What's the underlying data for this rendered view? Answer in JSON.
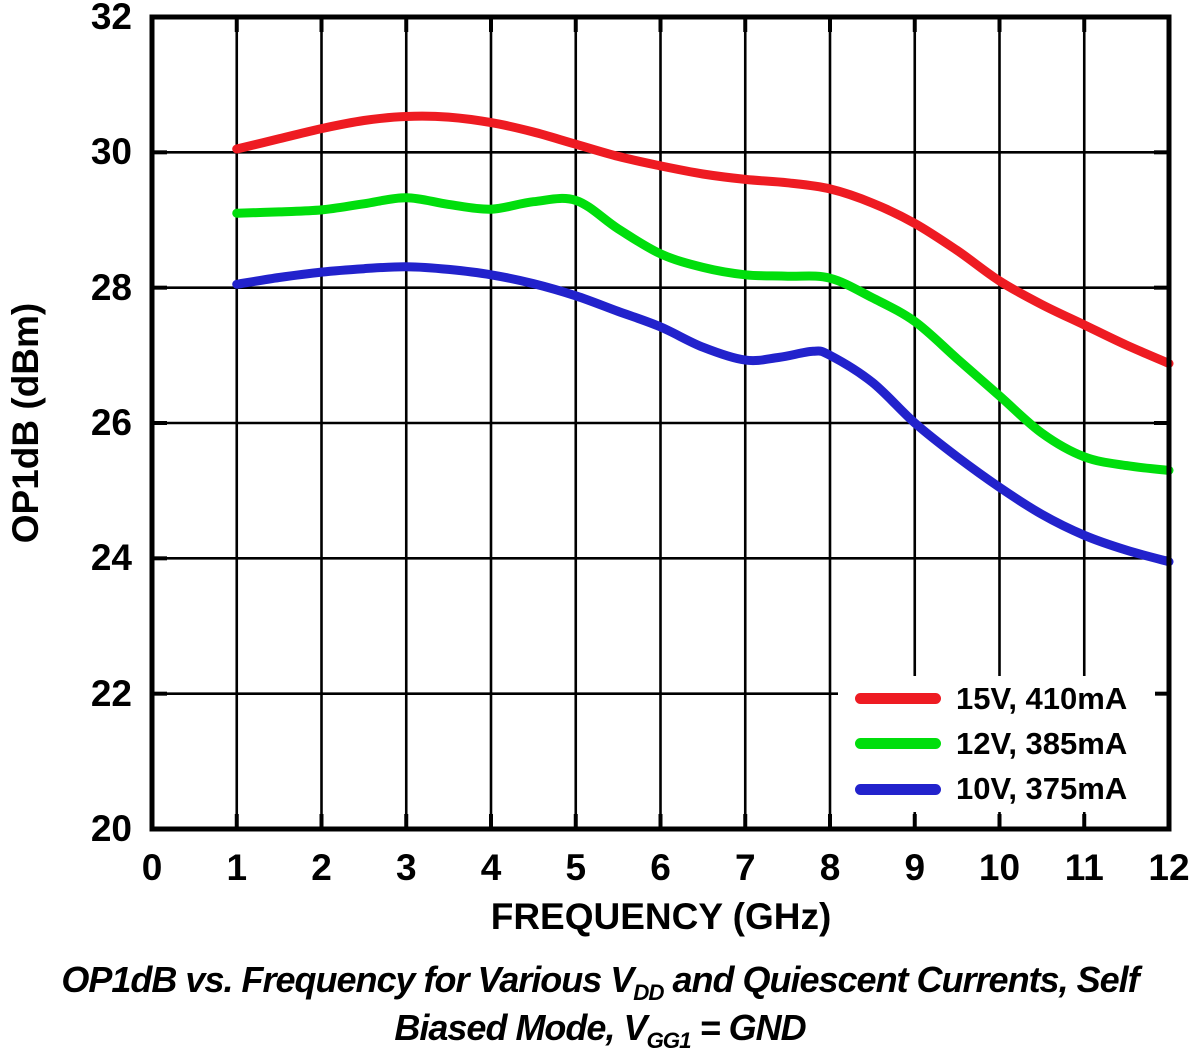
{
  "page": {
    "background": "#ffffff"
  },
  "caption": {
    "line1_pre": "OP1dB vs. Frequency for Various V",
    "line1_sub": "DD",
    "line1_post": " and Quiescent Currents, Self",
    "line2_pre": "Biased Mode, V",
    "line2_sub": "GG1",
    "line2_post": " = GND"
  },
  "chart_data": {
    "type": "line",
    "title": "OP1dB vs. Frequency for Various VDD and Quiescent Currents, Self Biased Mode, VGG1 = GND",
    "xlabel": "FREQUENCY (GHz)",
    "ylabel": "OP1dB (dBm)",
    "xlim": [
      0,
      12
    ],
    "ylim": [
      20,
      32
    ],
    "x_ticks": [
      0,
      1,
      2,
      3,
      4,
      5,
      6,
      7,
      8,
      9,
      10,
      11,
      12
    ],
    "y_ticks": [
      20,
      22,
      24,
      26,
      28,
      30,
      32
    ],
    "grid": true,
    "grid_color": "#000000",
    "legend_position": "lower right",
    "series": [
      {
        "name": "15V, 410mA",
        "color": "#EE1B22",
        "points": [
          [
            1,
            30.05
          ],
          [
            1.5,
            30.2
          ],
          [
            2,
            30.35
          ],
          [
            2.5,
            30.47
          ],
          [
            3,
            30.53
          ],
          [
            3.5,
            30.52
          ],
          [
            4,
            30.44
          ],
          [
            4.5,
            30.3
          ],
          [
            5,
            30.12
          ],
          [
            5.5,
            29.94
          ],
          [
            6,
            29.8
          ],
          [
            6.5,
            29.68
          ],
          [
            7,
            29.6
          ],
          [
            7.5,
            29.55
          ],
          [
            8,
            29.46
          ],
          [
            8.5,
            29.25
          ],
          [
            9,
            28.95
          ],
          [
            9.5,
            28.55
          ],
          [
            10,
            28.1
          ],
          [
            10.5,
            27.75
          ],
          [
            11,
            27.45
          ],
          [
            11.5,
            27.15
          ],
          [
            12,
            26.88
          ]
        ]
      },
      {
        "name": "12V, 385mA",
        "color": "#00DE0C",
        "points": [
          [
            1,
            29.1
          ],
          [
            1.5,
            29.12
          ],
          [
            2,
            29.15
          ],
          [
            2.5,
            29.24
          ],
          [
            3,
            29.33
          ],
          [
            3.5,
            29.23
          ],
          [
            4,
            29.16
          ],
          [
            4.5,
            29.27
          ],
          [
            5,
            29.29
          ],
          [
            5.5,
            28.87
          ],
          [
            6,
            28.5
          ],
          [
            6.5,
            28.3
          ],
          [
            7,
            28.19
          ],
          [
            7.5,
            28.17
          ],
          [
            8,
            28.14
          ],
          [
            8.5,
            27.85
          ],
          [
            9,
            27.5
          ],
          [
            9.5,
            26.95
          ],
          [
            10,
            26.4
          ],
          [
            10.5,
            25.85
          ],
          [
            11,
            25.5
          ],
          [
            11.5,
            25.37
          ],
          [
            12,
            25.3
          ]
        ]
      },
      {
        "name": "10V, 375mA",
        "color": "#2222CC",
        "points": [
          [
            1,
            28.05
          ],
          [
            1.5,
            28.15
          ],
          [
            2,
            28.23
          ],
          [
            2.5,
            28.28
          ],
          [
            3,
            28.31
          ],
          [
            3.5,
            28.27
          ],
          [
            4,
            28.19
          ],
          [
            4.5,
            28.06
          ],
          [
            5,
            27.88
          ],
          [
            5.5,
            27.65
          ],
          [
            6,
            27.42
          ],
          [
            6.5,
            27.12
          ],
          [
            7,
            26.93
          ],
          [
            7.4,
            26.97
          ],
          [
            7.8,
            27.06
          ],
          [
            8,
            27.0
          ],
          [
            8.5,
            26.6
          ],
          [
            9,
            26.0
          ],
          [
            9.5,
            25.5
          ],
          [
            10,
            25.05
          ],
          [
            10.5,
            24.65
          ],
          [
            11,
            24.34
          ],
          [
            11.5,
            24.12
          ],
          [
            12,
            23.95
          ]
        ]
      }
    ]
  }
}
